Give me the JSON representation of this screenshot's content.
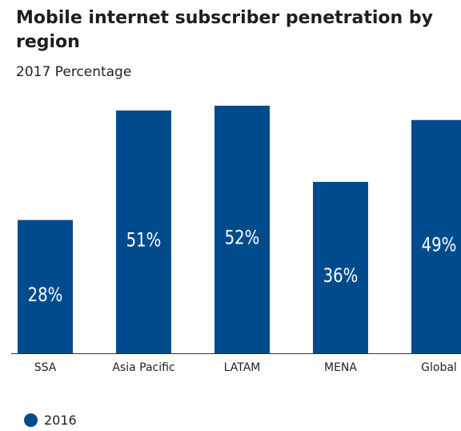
{
  "title": "Mobile internet subscriber penetration by region",
  "subtitle": "2017 Percentage",
  "colors": {
    "bar": "#004b8d",
    "label": "#ffffff",
    "axis": "#333333"
  },
  "chart_data": {
    "type": "bar",
    "title": "Mobile internet subscriber penetration by region",
    "subtitle": "2017 Percentage",
    "categories": [
      "SSA",
      "Asia Pacific",
      "LATAM",
      "MENA",
      "Global"
    ],
    "series": [
      {
        "name": "2016",
        "values": [
          28,
          51,
          52,
          36,
          49
        ],
        "labels": [
          "28%",
          "51%",
          "52%",
          "36%",
          "49%"
        ]
      }
    ],
    "ylim": [
      0,
      52.5
    ],
    "grid": false,
    "legend": "bottom-left"
  },
  "legend": {
    "items": [
      {
        "label": "2016"
      }
    ]
  }
}
